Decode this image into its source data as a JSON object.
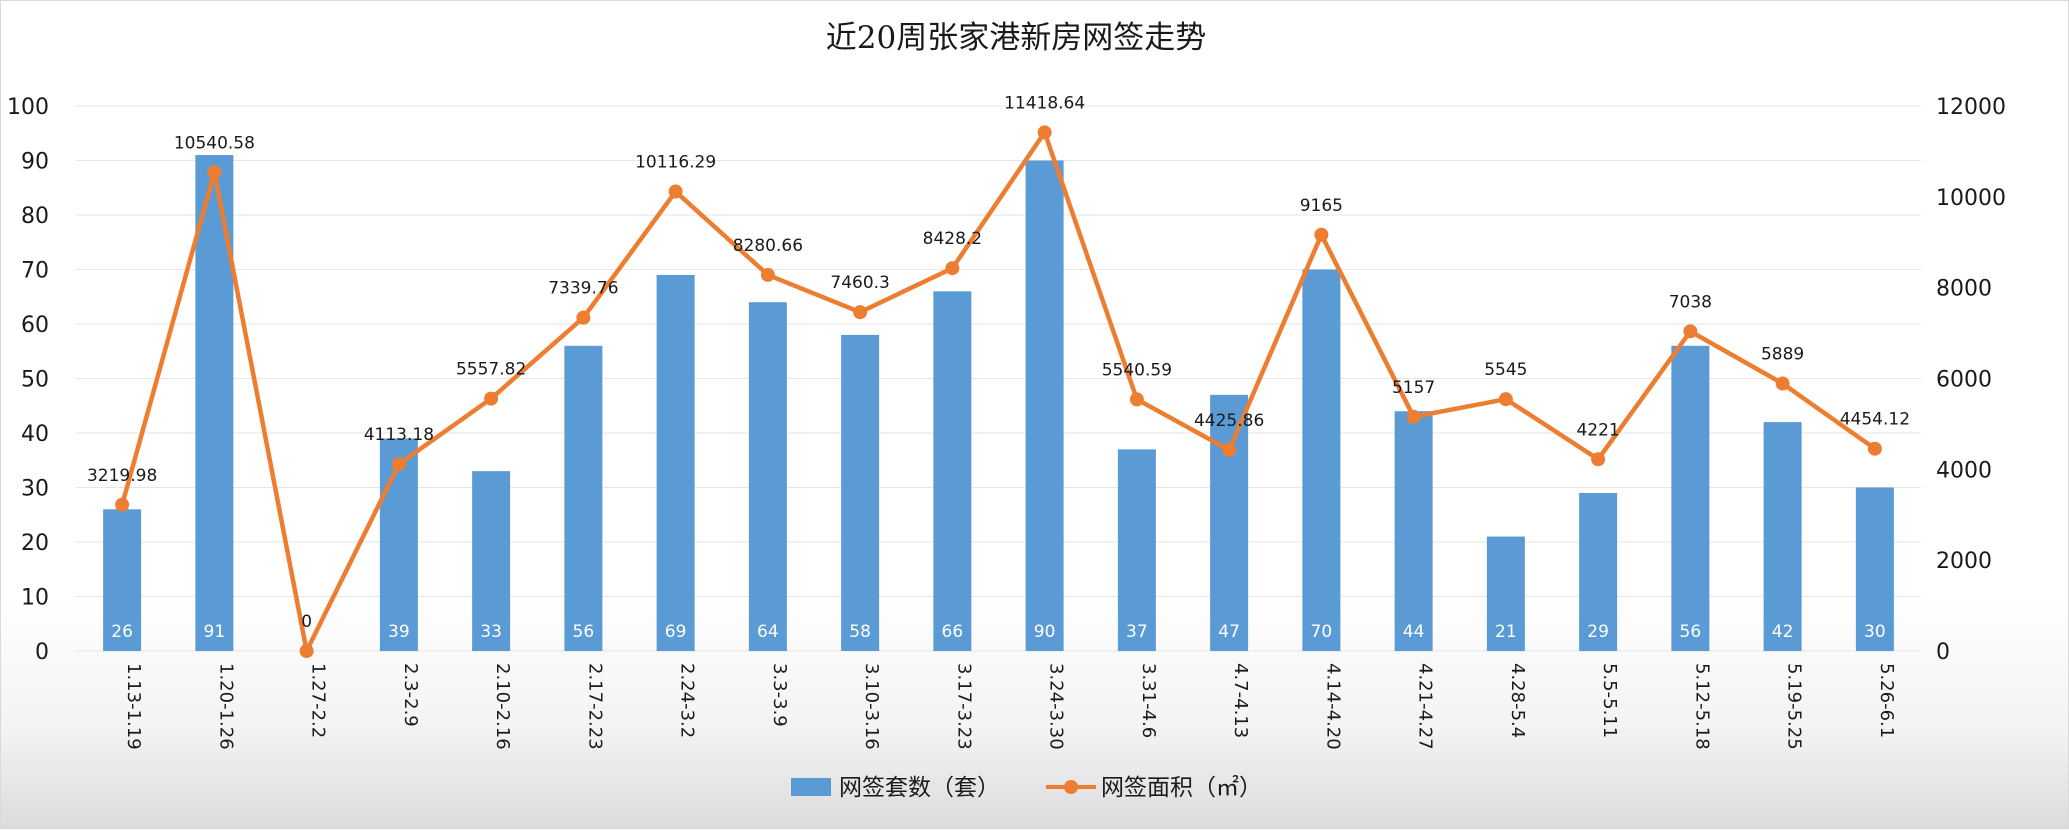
{
  "chart_data": {
    "type": "bar",
    "title": "近20周张家港新房网签走势",
    "categories": [
      "1.13-1.19",
      "1.20-1.26",
      "1.27-2.2",
      "2.3-2.9",
      "2.10-2.16",
      "2.17-2.23",
      "2.24-3.2",
      "3.3-3.9",
      "3.10-3.16",
      "3.17-3.23",
      "3.24-3.30",
      "3.31-4.6",
      "4.7-4.13",
      "4.14-4.20",
      "4.21-4.27",
      "4.28-5.4",
      "5.5-5.11",
      "5.12-5.18",
      "5.19-5.25",
      "5.26-6.1"
    ],
    "series": [
      {
        "name": "网签套数（套）",
        "type": "bar",
        "axis": "left",
        "color": "#5b9bd5",
        "values": [
          26,
          91,
          0,
          39,
          33,
          56,
          69,
          64,
          58,
          66,
          90,
          37,
          47,
          70,
          44,
          21,
          29,
          56,
          42,
          30
        ]
      },
      {
        "name": "网签面积（㎡）",
        "type": "line",
        "axis": "right",
        "color": "#ed7d31",
        "values": [
          3219.98,
          10540.58,
          0,
          4113.18,
          5557.82,
          7339.76,
          10116.29,
          8280.66,
          7460.3,
          8428.2,
          11418.64,
          5540.59,
          4425.86,
          9165,
          5157,
          5545,
          4221,
          7038,
          5889,
          4454.12
        ]
      }
    ],
    "y_left": {
      "min": 0,
      "max": 100,
      "ticks": [
        "0",
        "10",
        "20",
        "30",
        "40",
        "50",
        "60",
        "70",
        "80",
        "90",
        "100"
      ]
    },
    "y_right": {
      "min": 0,
      "max": 12000,
      "ticks": [
        "0",
        "2000",
        "4000",
        "6000",
        "8000",
        "10000",
        "12000"
      ]
    },
    "grid": true,
    "legend_position": "bottom",
    "xlabel": "",
    "ylabel": ""
  }
}
